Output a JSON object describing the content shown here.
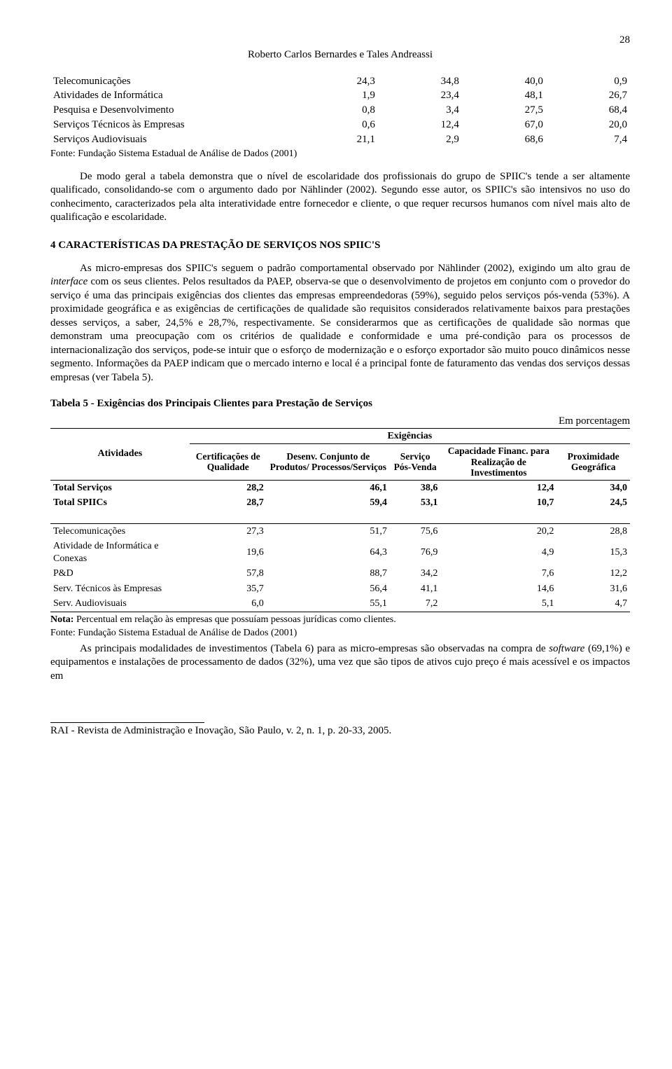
{
  "page_number": "28",
  "running_head": "Roberto Carlos Bernardes e Tales Andreassi",
  "top_table": {
    "rows": [
      {
        "label": "Telecomunicações",
        "c1": "24,3",
        "c2": "34,8",
        "c3": "40,0",
        "c4": "0,9"
      },
      {
        "label": "Atividades de Informática",
        "c1": "1,9",
        "c2": "23,4",
        "c3": "48,1",
        "c4": "26,7"
      },
      {
        "label": "Pesquisa e Desenvolvimento",
        "c1": "0,8",
        "c2": "3,4",
        "c3": "27,5",
        "c4": "68,4"
      },
      {
        "label": "Serviços Técnicos às Empresas",
        "c1": "0,6",
        "c2": "12,4",
        "c3": "67,0",
        "c4": "20,0"
      },
      {
        "label": "Serviços Audiovisuais",
        "c1": "21,1",
        "c2": "2,9",
        "c3": "68,6",
        "c4": "7,4"
      }
    ],
    "source": "Fonte: Fundação Sistema Estadual de Análise de Dados (2001)"
  },
  "para1": "De modo geral a tabela demonstra que o nível de escolaridade dos profissionais do grupo de SPIIC's tende a ser altamente qualificado, consolidando-se com o argumento dado por Nählinder (2002). Segundo esse autor, os SPIIC's são intensivos no uso do conhecimento, caracterizados pela alta interatividade entre fornecedor e cliente, o que requer recursos humanos com nível mais alto de qualificação e escolaridade.",
  "h4": "4    CARACTERÍSTICAS DA PRESTAÇÃO DE SERVIÇOS NOS SPIIC'S",
  "para2_html": "As micro-empresas dos SPIIC's seguem o padrão comportamental observado por Nählinder (2002), exigindo um alto grau de <i>interface</i> com os seus clientes. Pelos resultados da PAEP, observa-se que o desenvolvimento de projetos em conjunto com o provedor do serviço é uma das principais exigências dos clientes das empresas empreendedoras (59%), seguido pelos serviços pós-venda (53%). A proximidade geográfica e as exigências de certificações de qualidade são requisitos considerados relativamente baixos para prestações desses serviços, a saber, 24,5% e 28,7%, respectivamente. Se considerarmos que as certificações de qualidade são normas que demonstram uma preocupação com os critérios de qualidade e conformidade e uma pré-condição para os processos de internacionalização dos serviços, pode-se intuir que o esforço de modernização e o esforço exportador são muito pouco dinâmicos nesse segmento. Informações da PAEP indicam que o mercado interno e local é a principal fonte de faturamento das vendas dos serviços dessas empresas (ver Tabela 5).",
  "table5_caption": "Tabela 5 - Exigências dos Principais Clientes para Prestação de Serviços",
  "unit_label": "Em porcentagem",
  "table5": {
    "super_header": "Exigências",
    "col_act": "Atividades",
    "col_headers": [
      "Certificações de Qualidade",
      "Desenv. Conjunto de Produtos/ Processos/Serviços",
      "Serviço Pós-Venda",
      "Capacidade Financ. para Realização de Investimentos",
      "Proximidade Geográfica"
    ],
    "group1": [
      {
        "label": "Total Serviços",
        "v": [
          "28,2",
          "46,1",
          "38,6",
          "12,4",
          "34,0"
        ]
      },
      {
        "label": "Total SPIICs",
        "v": [
          "28,7",
          "59,4",
          "53,1",
          "10,7",
          "24,5"
        ]
      }
    ],
    "group2": [
      {
        "label": "Telecomunicações",
        "v": [
          "27,3",
          "51,7",
          "75,6",
          "20,2",
          "28,8"
        ]
      },
      {
        "label": "Atividade de Informática e Conexas",
        "v": [
          "19,6",
          "64,3",
          "76,9",
          "4,9",
          "15,3"
        ]
      },
      {
        "label": "P&D",
        "v": [
          "57,8",
          "88,7",
          "34,2",
          "7,6",
          "12,2"
        ]
      },
      {
        "label": "Serv. Técnicos às Empresas",
        "v": [
          "35,7",
          "56,4",
          "41,1",
          "14,6",
          "31,6"
        ]
      },
      {
        "label": "Serv. Audiovisuais",
        "v": [
          "6,0",
          "55,1",
          "7,2",
          "5,1",
          "4,7"
        ]
      }
    ]
  },
  "note_html": "<b>Nota:</b> Percentual em relação às empresas que possuíam pessoas jurídicas como clientes.",
  "source2": "Fonte: Fundação Sistema Estadual de Análise de Dados (2001)",
  "para3_html": "As principais modalidades de investimentos (Tabela 6) para as micro-empresas são observadas na compra de <i>software</i> (69,1%) e equipamentos e instalações de processamento de dados (32%), uma vez que são tipos de ativos cujo preço é mais acessível e os impactos em",
  "footer": "RAI - Revista de Administração e Inovação, São Paulo, v. 2,  n. 1, p. 20-33, 2005."
}
